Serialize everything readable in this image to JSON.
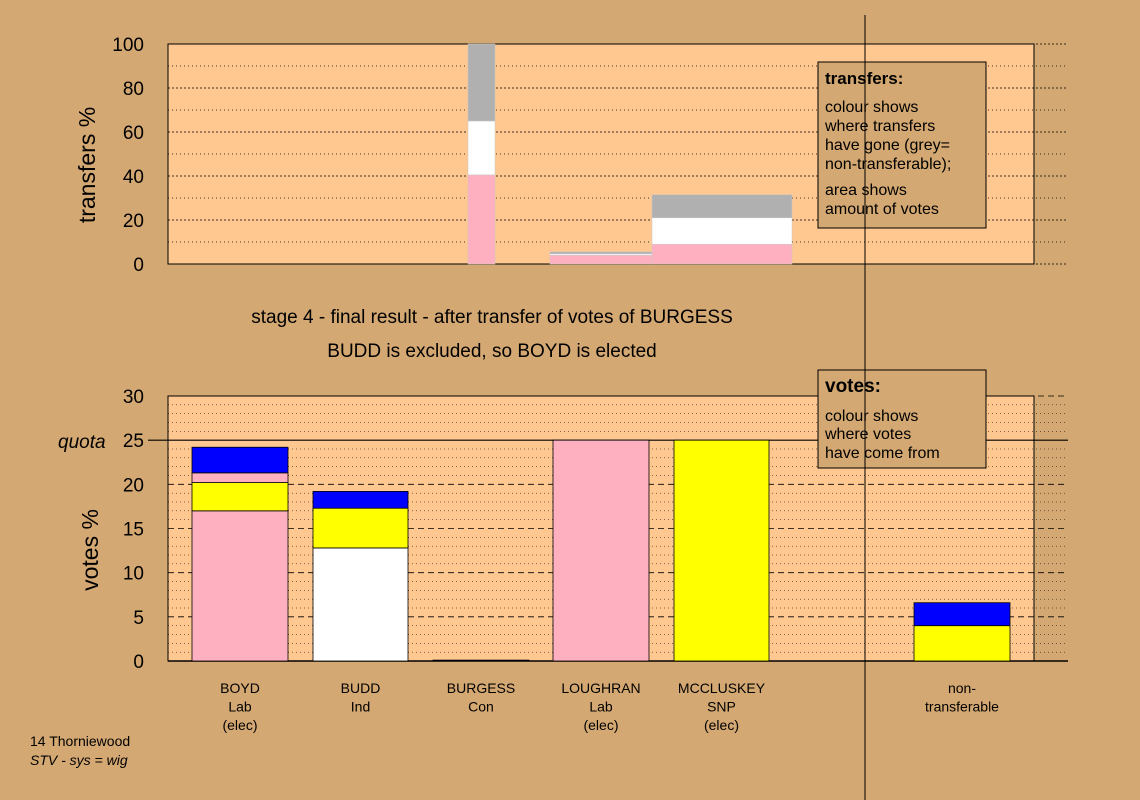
{
  "heading": {
    "line1": "stage 4 - final result - after transfer of votes of BURGESS",
    "line2": "BUDD is excluded, so BOYD is elected"
  },
  "footer": {
    "ward": "14 Thorniewood",
    "system": "STV - sys = wig"
  },
  "colors": {
    "background": "#d4a872",
    "plot_area": "#ffc890",
    "Lab": "#ffb0c0",
    "Ind": "#ffffff",
    "SNP": "#ffff00",
    "Con": "#0000ff",
    "nontransferable": "#b0b0b0"
  },
  "chart_data": [
    {
      "type": "bar",
      "stacked": true,
      "id": "transfers",
      "ylabel": "transfers %",
      "ylim": [
        0,
        100
      ],
      "yticks": [
        0,
        20,
        40,
        60,
        80,
        100
      ],
      "grid": "dotted",
      "legend": {
        "title": "transfers:",
        "lines1": [
          "colour shows",
          "where transfers",
          "have gone (grey=",
          "non-transferable);"
        ],
        "lines2": [
          "area shows",
          "amount of votes"
        ]
      },
      "columns": [
        {
          "candidate": "BOYD",
          "segments": [
            {
              "color": "Lab",
              "value": 40.5
            },
            {
              "color": "Ind",
              "value": 24.5
            },
            {
              "color": "nontransferable",
              "value": 35
            }
          ]
        },
        {
          "candidate": "BUDD",
          "segments": [
            {
              "color": "Lab",
              "value": 4
            },
            {
              "color": "Ind",
              "value": 0.6
            },
            {
              "color": "nontransferable",
              "value": 0.9
            }
          ]
        },
        {
          "candidate": "MCCLUSKEY",
          "segments": [
            {
              "color": "Lab",
              "value": 9
            },
            {
              "color": "Ind",
              "value": 12
            },
            {
              "color": "nontransferable",
              "value": 10.5
            }
          ]
        }
      ]
    },
    {
      "type": "bar",
      "stacked": true,
      "id": "votes",
      "ylabel": "votes %",
      "ylim": [
        0,
        30
      ],
      "yticks": [
        0,
        5,
        10,
        15,
        20,
        25,
        30
      ],
      "quota": 25,
      "quota_label": "quota",
      "grid": "dashed",
      "legend": {
        "title": "votes:",
        "lines": [
          "colour shows",
          "where votes",
          "have come from"
        ]
      },
      "categories": [
        {
          "name": "BOYD",
          "party": "Lab",
          "status": "(elec)"
        },
        {
          "name": "BUDD",
          "party": "Ind",
          "status": ""
        },
        {
          "name": "BURGESS",
          "party": "Con",
          "status": ""
        },
        {
          "name": "LOUGHRAN",
          "party": "Lab",
          "status": "(elec)"
        },
        {
          "name": "MCCLUSKEY",
          "party": "SNP",
          "status": "(elec)"
        },
        {
          "name": "non-",
          "party": "transferable",
          "status": ""
        }
      ],
      "columns": [
        {
          "candidate": "BOYD",
          "segments": [
            {
              "color": "Lab",
              "value": 17
            },
            {
              "color": "SNP",
              "value": 3.2
            },
            {
              "color": "Lab",
              "value": 1.1
            },
            {
              "color": "Con",
              "value": 2.9
            }
          ]
        },
        {
          "candidate": "BUDD",
          "segments": [
            {
              "color": "Ind",
              "value": 12.8
            },
            {
              "color": "SNP",
              "value": 4.5
            },
            {
              "color": "Con",
              "value": 1.9
            }
          ]
        },
        {
          "candidate": "BURGESS",
          "segments": [
            {
              "color": "Con",
              "value": 0.1
            }
          ]
        },
        {
          "candidate": "LOUGHRAN",
          "segments": [
            {
              "color": "Lab",
              "value": 25
            }
          ]
        },
        {
          "candidate": "MCCLUSKEY",
          "segments": [
            {
              "color": "SNP",
              "value": 25
            }
          ]
        },
        {
          "candidate": "non-transferable",
          "segments": [
            {
              "color": "SNP",
              "value": 4
            },
            {
              "color": "Con",
              "value": 2.6
            }
          ]
        }
      ]
    }
  ]
}
